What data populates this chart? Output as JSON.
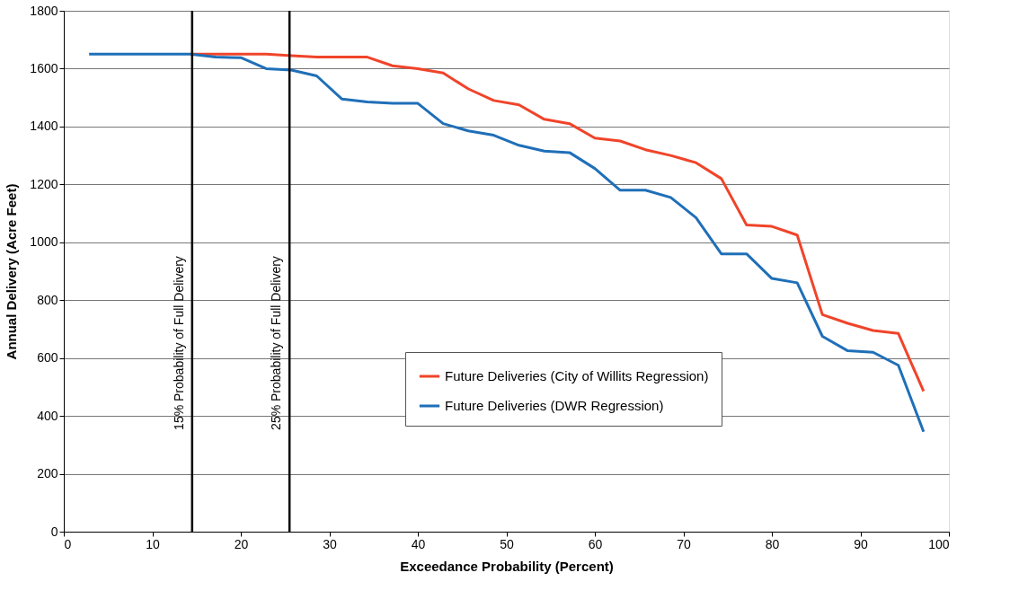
{
  "chart_data": {
    "type": "line",
    "xlabel": "Exceedance Probability (Percent)",
    "ylabel": "Annual Delivery (Acre Feet)",
    "x": [
      2.86,
      5.71,
      8.57,
      11.43,
      14.29,
      17.14,
      20,
      22.86,
      25.71,
      28.57,
      31.43,
      34.29,
      37.14,
      40,
      42.86,
      45.71,
      48.57,
      51.43,
      54.29,
      57.14,
      60,
      62.86,
      65.71,
      68.57,
      71.43,
      74.29,
      77.14,
      80,
      82.86,
      85.71,
      88.57,
      91.43,
      94.29,
      97.14
    ],
    "series": [
      {
        "name": "Future Deliveries (City of Willits Regression)",
        "color": "#f0442a",
        "values": [
          null,
          null,
          null,
          null,
          1650,
          1650,
          1650,
          1650,
          1645,
          1640,
          1640,
          1640,
          1610,
          1600,
          1585,
          1530,
          1490,
          1475,
          1425,
          1410,
          1360,
          1350,
          1320,
          1300,
          1275,
          1220,
          1060,
          1055,
          1025,
          750,
          720,
          695,
          685,
          485
        ]
      },
      {
        "name": "Future Deliveries (DWR Regression)",
        "color": "#1f6fb8",
        "values": [
          1650,
          1650,
          1650,
          1650,
          1650,
          1640,
          1638,
          1600,
          1595,
          1575,
          1495,
          1485,
          1480,
          1480,
          1410,
          1385,
          1370,
          1335,
          1315,
          1310,
          1255,
          1180,
          1180,
          1155,
          1085,
          960,
          960,
          875,
          860,
          675,
          625,
          620,
          575,
          345
        ]
      }
    ],
    "xlim": [
      0,
      100
    ],
    "xticks": [
      0,
      10,
      20,
      30,
      40,
      50,
      60,
      70,
      80,
      90,
      100
    ],
    "ylim": [
      0,
      1800
    ],
    "yticks": [
      0,
      200,
      400,
      600,
      800,
      1000,
      1200,
      1400,
      1600,
      1800
    ],
    "grid": "y",
    "legend": "right",
    "marker": "none",
    "line_style": "solid",
    "ref_lines": [
      {
        "axis": "x",
        "value": 14.5,
        "label": "15% Probability of Full Delivery",
        "color": "#000000"
      },
      {
        "axis": "x",
        "value": 25.5,
        "label": "25% Probability of Full Delivery",
        "color": "#000000"
      }
    ]
  }
}
